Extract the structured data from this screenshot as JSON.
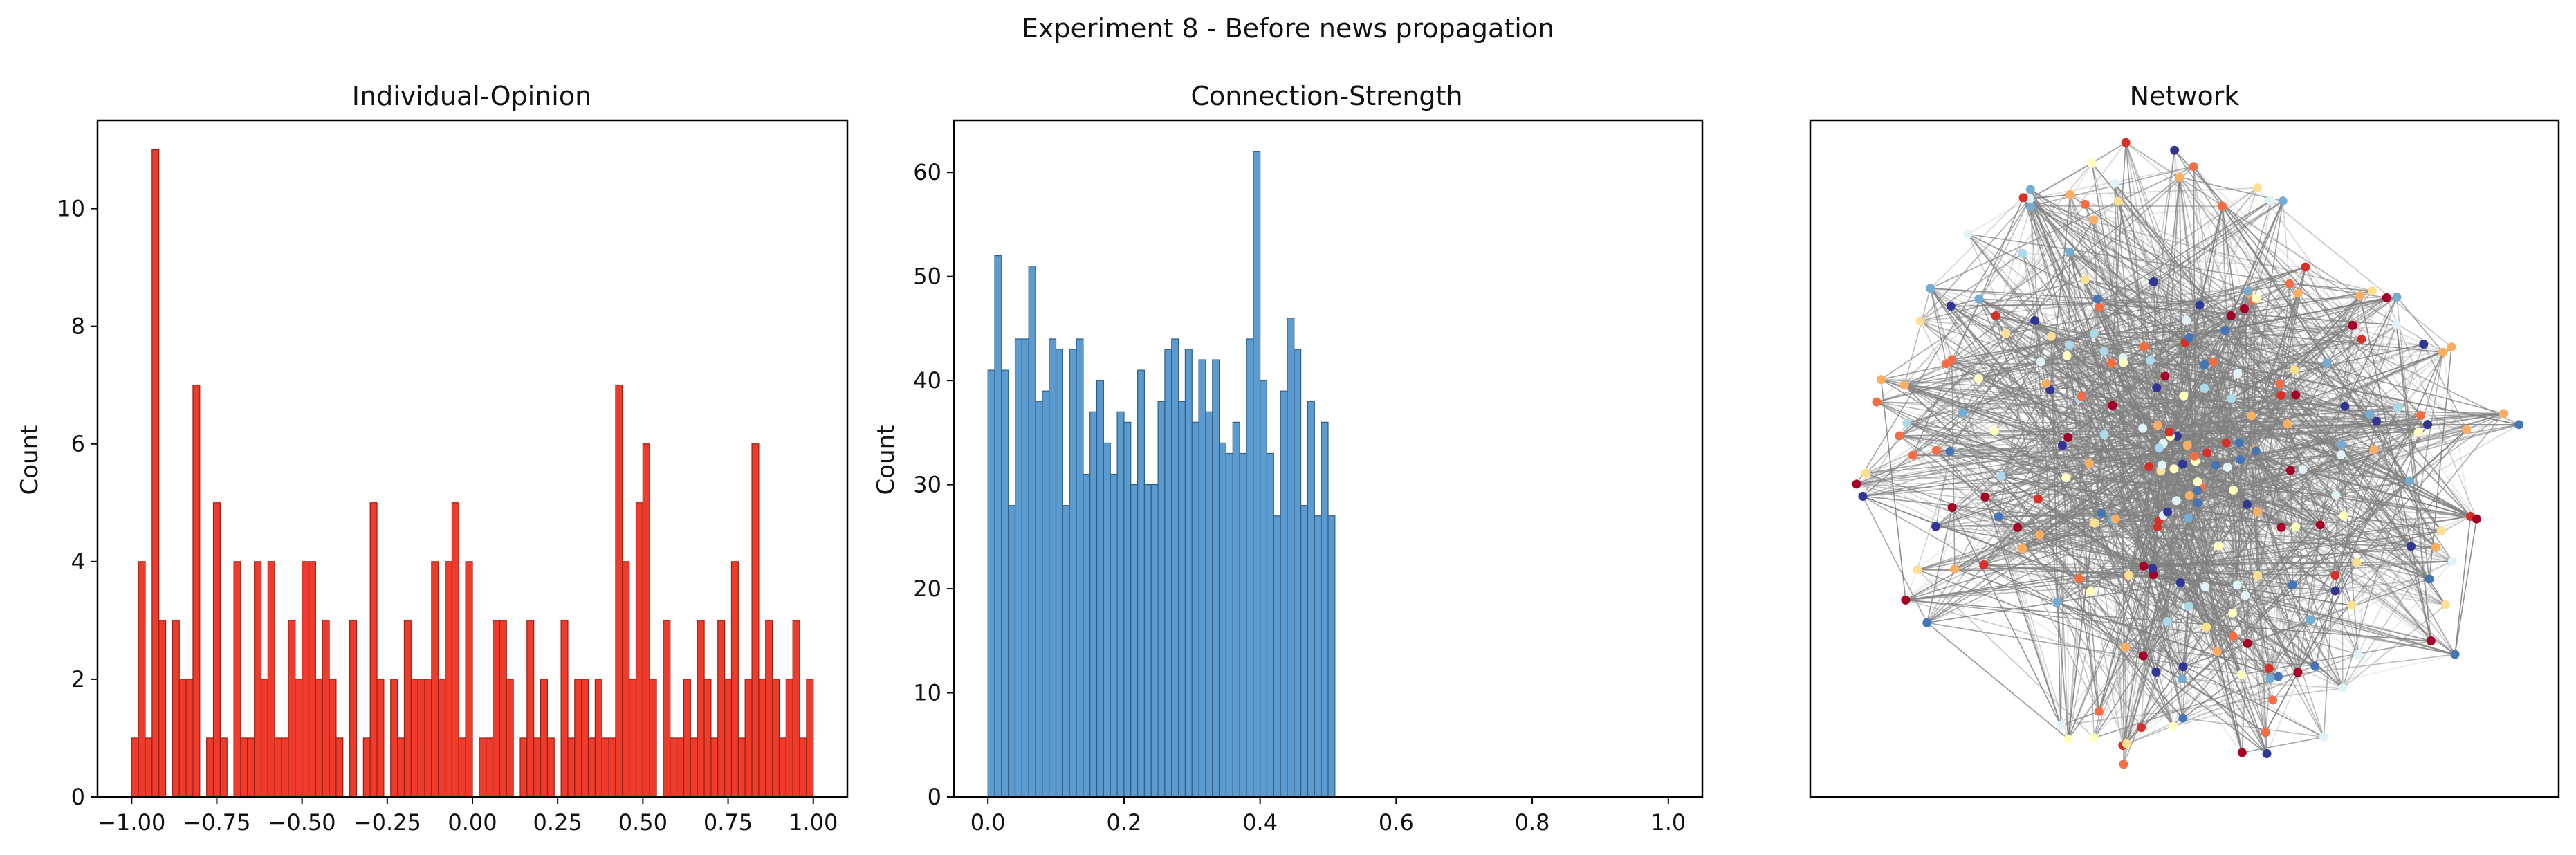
{
  "suptitle": "Experiment 8 - Before news propagation",
  "colors": {
    "opinion_fill": "#ef3b2c",
    "opinion_edge": "#9a1f14",
    "strength_fill": "#5b9bd0",
    "strength_edge": "#2f5e86",
    "edge_color": "#808080",
    "node_palette": [
      "#a50026",
      "#d73027",
      "#f46d43",
      "#fdae61",
      "#fee090",
      "#ffffbf",
      "#e0f3f8",
      "#abd9e9",
      "#74add1",
      "#4575b4",
      "#313695"
    ]
  },
  "chart_data": [
    {
      "type": "bar",
      "title": "Individual-Opinion",
      "xlabel": "",
      "ylabel": "Count",
      "xlim": [
        -1.1,
        1.1
      ],
      "ylim": [
        0,
        11.5
      ],
      "xticks": [
        "−1.00",
        "−0.75",
        "−0.50",
        "−0.25",
        "0.00",
        "0.25",
        "0.50",
        "0.75",
        "1.00"
      ],
      "xtick_values": [
        -1,
        -0.75,
        -0.5,
        -0.25,
        0,
        0.25,
        0.5,
        0.75,
        1
      ],
      "yticks": [
        "0",
        "2",
        "4",
        "6",
        "8",
        "10"
      ],
      "ytick_values": [
        0,
        2,
        4,
        6,
        8,
        10
      ],
      "bin_start": -1.0,
      "bin_width": 0.02,
      "values": [
        1,
        4,
        1,
        11,
        3,
        0,
        3,
        2,
        2,
        7,
        0,
        1,
        5,
        1,
        0,
        4,
        1,
        1,
        4,
        2,
        4,
        1,
        1,
        3,
        2,
        4,
        4,
        2,
        3,
        2,
        1,
        0,
        3,
        0,
        1,
        5,
        2,
        0,
        2,
        1,
        3,
        2,
        2,
        2,
        4,
        2,
        4,
        5,
        1,
        4,
        0,
        1,
        1,
        3,
        3,
        2,
        0,
        1,
        3,
        1,
        2,
        1,
        0,
        3,
        1,
        2,
        2,
        1,
        2,
        1,
        1,
        7,
        4,
        2,
        5,
        6,
        2,
        0,
        3,
        1,
        1,
        2,
        1,
        3,
        2,
        1,
        3,
        2,
        4,
        1,
        2,
        6,
        2,
        3,
        2,
        1,
        2,
        3,
        1,
        2
      ]
    },
    {
      "type": "bar",
      "title": "Connection-Strength",
      "xlabel": "",
      "ylabel": "Count",
      "xlim": [
        -0.05,
        1.05
      ],
      "ylim": [
        0,
        65
      ],
      "xticks": [
        "0.0",
        "0.2",
        "0.4",
        "0.6",
        "0.8",
        "1.0"
      ],
      "xtick_values": [
        0,
        0.2,
        0.4,
        0.6,
        0.8,
        1.0
      ],
      "yticks": [
        "0",
        "10",
        "20",
        "30",
        "40",
        "50",
        "60"
      ],
      "ytick_values": [
        0,
        10,
        20,
        30,
        40,
        50,
        60
      ],
      "bin_start": 0.0,
      "bin_width": 0.01,
      "values": [
        41,
        52,
        41,
        28,
        44,
        44,
        51,
        38,
        39,
        44,
        43,
        28,
        43,
        44,
        31,
        37,
        40,
        34,
        31,
        37,
        36,
        30,
        41,
        30,
        30,
        38,
        43,
        44,
        38,
        43,
        36,
        42,
        37,
        42,
        34,
        33,
        36,
        33,
        44,
        62,
        40,
        33,
        27,
        39,
        46,
        43,
        28,
        38,
        27,
        36,
        27
      ]
    },
    {
      "type": "table",
      "title": "Network"
    }
  ]
}
